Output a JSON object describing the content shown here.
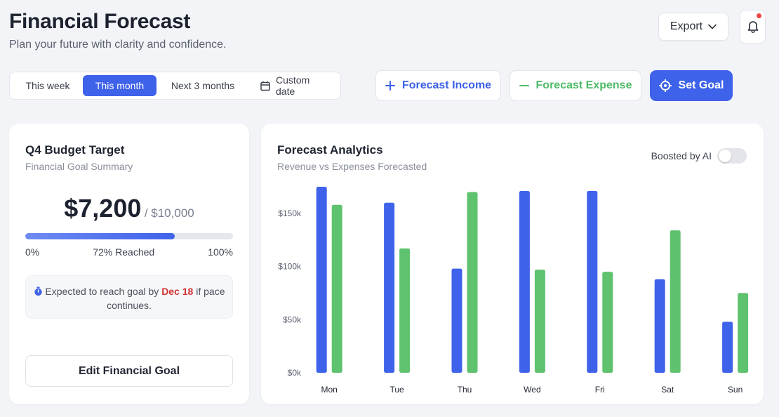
{
  "header": {
    "title": "Financial Forecast",
    "subtitle": "Plan your future with clarity and confidence.",
    "export_label": "Export"
  },
  "period_tabs": [
    {
      "label": "This week",
      "active": false
    },
    {
      "label": "This month",
      "active": true
    },
    {
      "label": "Next 3 months",
      "active": false
    },
    {
      "label": "Custom date",
      "active": false
    }
  ],
  "actions": {
    "income_label": "Forecast Income",
    "expense_label": "Forecast Expense",
    "goal_label": "Set Goal"
  },
  "budget_card": {
    "title": "Q4 Budget Target",
    "subtitle": "Financial Goal Summary",
    "amount": "$7,200",
    "target": "/ $10,000",
    "progress_percent": 72,
    "min_label": "0%",
    "reached_label": "72% Reached",
    "max_label": "100%",
    "expect_prefix": "Expected to reach goal by",
    "expect_date": "Dec 18",
    "expect_suffix": "if pace continues.",
    "edit_label": "Edit Financial Goal"
  },
  "analytics_card": {
    "title": "Forecast Analytics",
    "subtitle": "Revenue vs Expenses Forecasted",
    "toggle_label": "Boosted by AI",
    "toggle_on": false
  },
  "colors": {
    "accent": "#3f62ea",
    "revenue": "#3f62ea",
    "expense": "#5ec26f",
    "danger": "#d23232",
    "notification": "#ef4444"
  },
  "chart_data": {
    "type": "bar",
    "categories": [
      "Mon",
      "Tue",
      "Thu",
      "Wed",
      "Fri",
      "Sat",
      "Sun"
    ],
    "series": [
      {
        "values": [
          175000,
          160000,
          98000,
          171000,
          171000,
          88000,
          48000
        ],
        "color": "#3f62ea"
      },
      {
        "values": [
          158000,
          117000,
          170000,
          97000,
          95000,
          134000,
          75000
        ],
        "color": "#5ec26f"
      }
    ],
    "yticks": [
      "$0k",
      "$50k",
      "$100k",
      "$150k"
    ],
    "ytick_values": [
      0,
      50000,
      100000,
      150000
    ],
    "ylim": [
      0,
      175000
    ],
    "grid": false
  }
}
